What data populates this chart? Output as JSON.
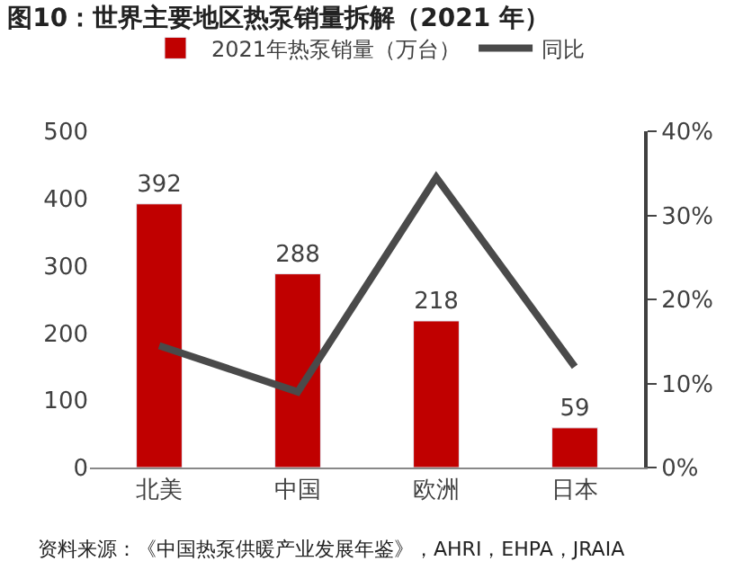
{
  "chart_data": {
    "type": "bar",
    "title": "图10：世界主要地区热泵销量拆解（2021 年）",
    "categories": [
      "北美",
      "中国",
      "欧洲",
      "日本"
    ],
    "series": [
      {
        "name": "2021年热泵销量（万台）",
        "color": "#c00000",
        "values": [
          392,
          288,
          218,
          59
        ]
      },
      {
        "name": "同比",
        "type": "line",
        "axis": "y2",
        "color": "#4a4a4a",
        "values": [
          14.5,
          9,
          34.5,
          12
        ]
      }
    ],
    "value_labels": [
      "392",
      "288",
      "218",
      "59"
    ],
    "ylim": [
      0,
      500
    ],
    "yticks": [
      0,
      100,
      200,
      300,
      400,
      500
    ],
    "y2lim": [
      0,
      40
    ],
    "y2ticks": [
      {
        "value": 0,
        "label": "0%"
      },
      {
        "value": 10,
        "label": "10%"
      },
      {
        "value": 20,
        "label": "20%"
      },
      {
        "value": 30,
        "label": "30%"
      },
      {
        "value": 40,
        "label": "40%"
      }
    ],
    "legend": "top",
    "marker": "none",
    "line_style": "solid",
    "annotations": [
      "资料来源：《中国热泵供暖产业发展年鉴》，AHRI，EHPA，JRAIA"
    ]
  }
}
